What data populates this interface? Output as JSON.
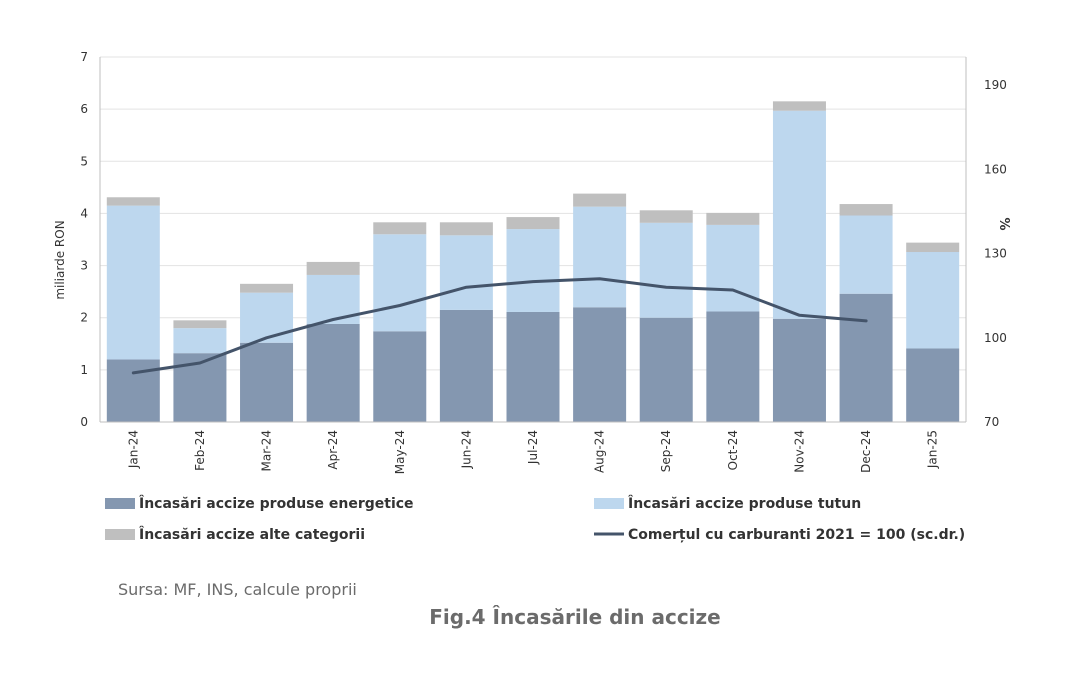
{
  "chart_data": {
    "type": "bar",
    "stacked": true,
    "categories": [
      "Jan-24",
      "Feb-24",
      "Mar-24",
      "Apr-24",
      "May-24",
      "Jun-24",
      "Jul-24",
      "Aug-24",
      "Sep-24",
      "Oct-24",
      "Nov-24",
      "Dec-24",
      "Jan-25"
    ],
    "series": [
      {
        "name": "Încasări accize produse energetice",
        "color": "#8497b0",
        "values": [
          1.2,
          1.32,
          1.52,
          1.88,
          1.74,
          2.15,
          2.11,
          2.2,
          2.0,
          2.12,
          1.98,
          2.46,
          1.41
        ]
      },
      {
        "name": "Încasări accize produse tutun",
        "color": "#bdd7ee",
        "values": [
          2.95,
          0.48,
          0.96,
          0.94,
          1.86,
          1.43,
          1.59,
          1.93,
          1.82,
          1.66,
          3.99,
          1.5,
          1.85
        ]
      },
      {
        "name": "Încasări accize alte categorii",
        "color": "#bfbfbf",
        "values": [
          0.16,
          0.15,
          0.17,
          0.25,
          0.23,
          0.25,
          0.23,
          0.25,
          0.24,
          0.23,
          0.18,
          0.22,
          0.18
        ]
      }
    ],
    "line_series": {
      "name": "Comerțul cu carburanti 2021 = 100 (sc.dr.)",
      "color": "#44546a",
      "values": [
        87.5,
        91,
        100,
        106.5,
        111.5,
        118,
        120,
        121,
        118,
        117,
        108,
        106,
        null
      ]
    },
    "ylabel": "miliarde RON",
    "ylim": [
      0,
      7
    ],
    "yticks": [
      0,
      1,
      2,
      3,
      4,
      5,
      6,
      7
    ],
    "y2label": "%",
    "y2lim": [
      70,
      200
    ],
    "y2ticks": [
      70,
      100,
      130,
      160,
      190
    ],
    "legend_position": "bottom"
  },
  "source": "Sursa: MF, INS, calcule proprii",
  "caption": "Fig.4 Încasările din accize"
}
